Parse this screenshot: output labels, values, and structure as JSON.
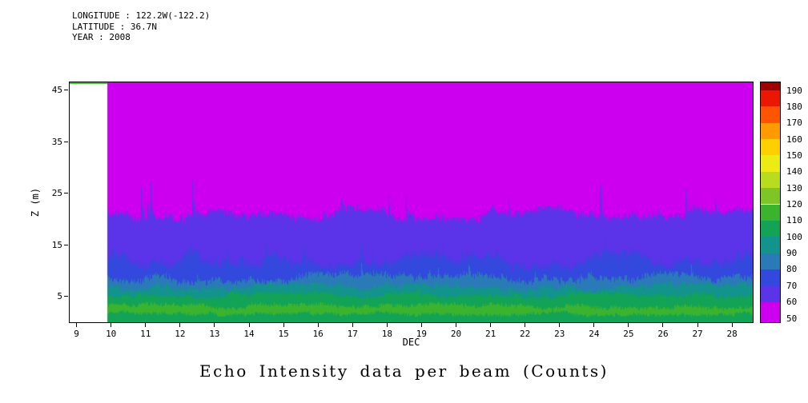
{
  "header": {
    "longitude": "LONGITUDE : 122.2W(-122.2)",
    "latitude": "LATITUDE : 36.7N",
    "year": "YEAR : 2008"
  },
  "title": "Echo Intensity data per beam (Counts)",
  "axes": {
    "xlabel": "DEC",
    "ylabel": "Z (m)",
    "x_ticks": [
      9,
      10,
      11,
      12,
      13,
      14,
      15,
      16,
      17,
      18,
      19,
      20,
      21,
      22,
      23,
      24,
      25,
      26,
      27,
      28
    ],
    "y_ticks": [
      5,
      15,
      25,
      35,
      45
    ],
    "x_range": [
      8.8,
      28.6
    ],
    "y_range": [
      0,
      46.5
    ]
  },
  "colorbar": {
    "position": "right",
    "tick_labels": [
      "50",
      "60",
      "70",
      "80",
      "90",
      "100",
      "110",
      "120",
      "130",
      "140",
      "150",
      "160",
      "170",
      "180",
      "190"
    ],
    "cells": [
      {
        "value_from": 50,
        "color": "#cc00ee"
      },
      {
        "value_from": 60,
        "color": "#5b33e8"
      },
      {
        "value_from": 70,
        "color": "#3348dd"
      },
      {
        "value_from": 80,
        "color": "#2b7ab8"
      },
      {
        "value_from": 90,
        "color": "#12948c"
      },
      {
        "value_from": 100,
        "color": "#12a356"
      },
      {
        "value_from": 110,
        "color": "#3cb32e"
      },
      {
        "value_from": 120,
        "color": "#7ec626"
      },
      {
        "value_from": 130,
        "color": "#b8dc1e"
      },
      {
        "value_from": 140,
        "color": "#ecec14"
      },
      {
        "value_from": 150,
        "color": "#ffcf00"
      },
      {
        "value_from": 160,
        "color": "#ff9b00"
      },
      {
        "value_from": 170,
        "color": "#ff5400"
      },
      {
        "value_from": 180,
        "color": "#ea1800"
      },
      {
        "value_from": 190,
        "color": "#9e0000"
      }
    ]
  },
  "chart_data": {
    "type": "heatmap",
    "title": "Echo Intensity data per beam (Counts)",
    "xlabel": "DEC",
    "ylabel": "Z (m)",
    "units": "Counts",
    "x_range": [
      8.8,
      28.6
    ],
    "y_range": [
      0,
      46.5
    ],
    "x_ticks": [
      9,
      10,
      11,
      12,
      13,
      14,
      15,
      16,
      17,
      18,
      19,
      20,
      21,
      22,
      23,
      24,
      25,
      26,
      27,
      28
    ],
    "y_ticks": [
      5,
      15,
      25,
      35,
      45
    ],
    "data_start_x": 9.9,
    "value_range": [
      50,
      190
    ],
    "legend_position": "colorbar-right",
    "grid": false,
    "surface_strip": {
      "x_from": 8.8,
      "x_to": 9.9,
      "value": 115,
      "thickness_m": 0.4
    },
    "depth_bands": [
      {
        "counts_range": "50-60",
        "value": 55,
        "z_top": 46.5,
        "z_bottom_mean": 21.0,
        "wander": 1.2,
        "noise": 0.7,
        "spike_prob": 0.02,
        "spike_max": 6
      },
      {
        "counts_range": "60-70",
        "value": 65,
        "z_bottom_mean": 12.0,
        "wander": 1.5,
        "noise": 0.9,
        "spike_prob": 0.012,
        "spike_max": 3
      },
      {
        "counts_range": "70-80",
        "value": 75,
        "z_bottom_mean": 8.6,
        "wander": 0.9,
        "noise": 0.6,
        "spike_prob": 0.01,
        "spike_max": 2
      },
      {
        "counts_range": "80-90",
        "value": 85,
        "z_bottom_mean": 6.8,
        "wander": 0.7,
        "noise": 0.5,
        "spike_prob": 0.008,
        "spike_max": 1.5
      },
      {
        "counts_range": "90-100",
        "value": 95,
        "z_bottom_mean": 5.2,
        "wander": 0.6,
        "noise": 0.4,
        "spike_prob": 0.006,
        "spike_max": 1.2
      },
      {
        "counts_range": "100-110",
        "value": 105,
        "z_bottom_mean": 3.1,
        "wander": 0.5,
        "noise": 0.35,
        "spike_prob": 0,
        "spike_max": 0
      },
      {
        "counts_range": "110-120",
        "value": 115,
        "z_bottom_mean": 1.7,
        "wander": 0.4,
        "noise": 0.3,
        "spike_prob": 0,
        "spike_max": 0
      },
      {
        "counts_range": "100-110",
        "value": 105,
        "z_bottom_mean": 0,
        "wander": 0,
        "noise": 0,
        "spike_prob": 0,
        "spike_max": 0
      }
    ]
  }
}
